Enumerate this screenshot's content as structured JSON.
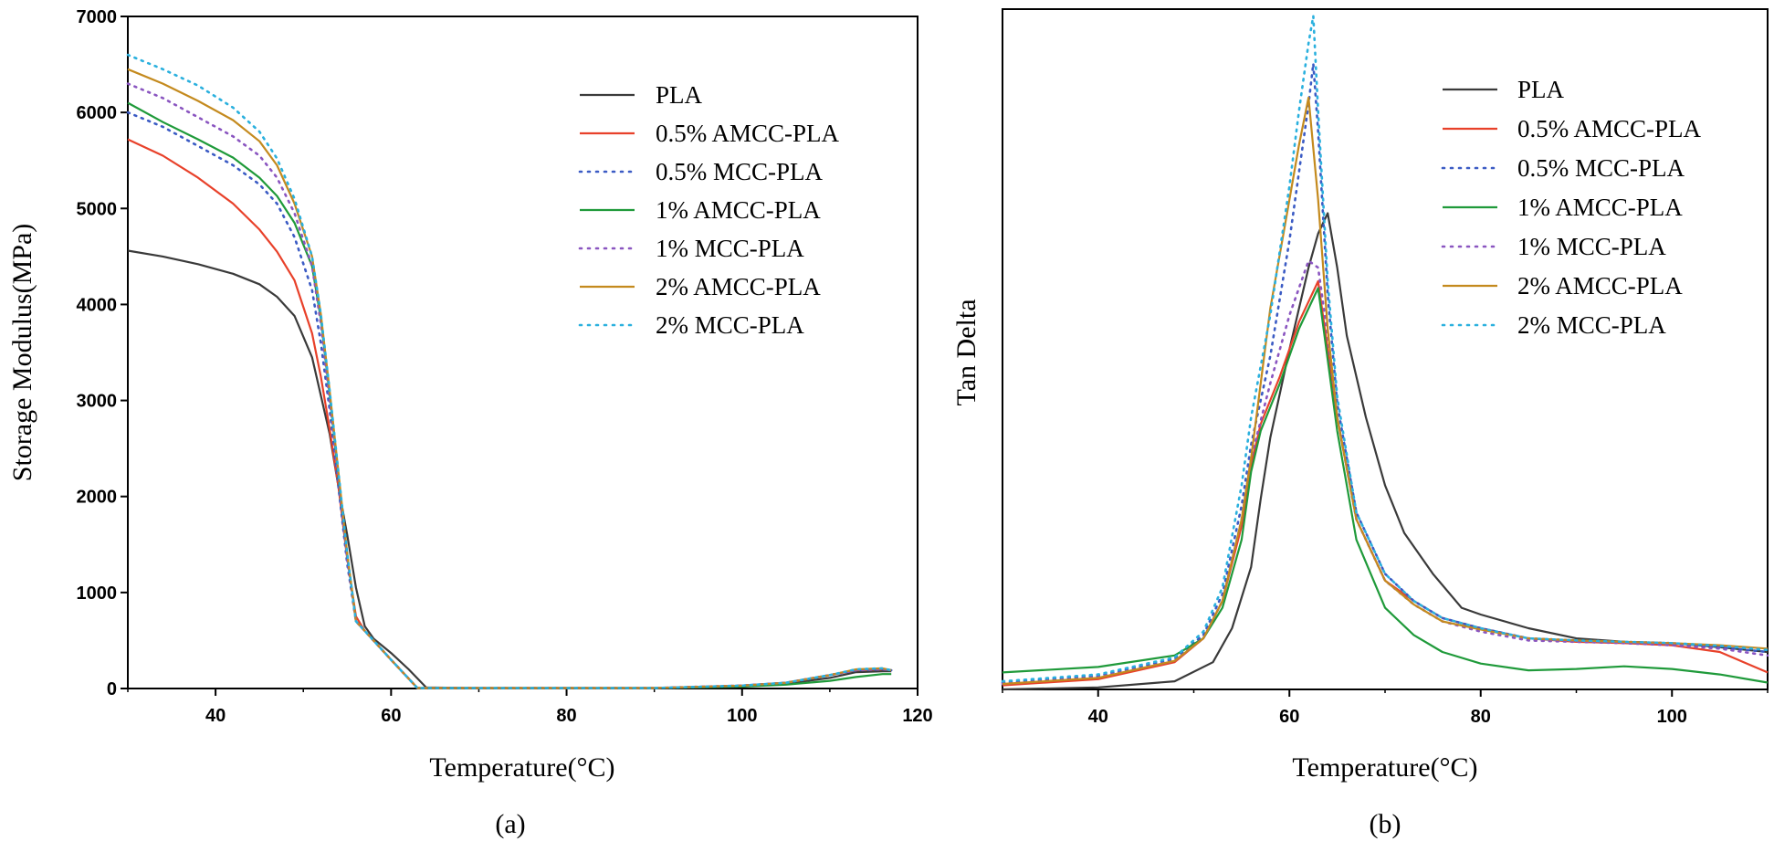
{
  "chart_data": [
    {
      "panel": "a",
      "caption": "(a)",
      "type": "line",
      "xlabel": "Temperature(°C)",
      "ylabel": "Storage Modulus(MPa)",
      "xlim": [
        30,
        120
      ],
      "ylim": [
        0,
        7000
      ],
      "xticks": [
        40,
        60,
        80,
        100,
        120
      ],
      "yticks": [
        0,
        1000,
        2000,
        3000,
        4000,
        5000,
        6000,
        7000
      ],
      "legend": "top-right",
      "series": [
        {
          "name": "PLA",
          "color": "#3a3a3a",
          "dash": "solid",
          "x": [
            30,
            34,
            38,
            42,
            45,
            47,
            49,
            51,
            53,
            54,
            55,
            56,
            57,
            58,
            60,
            62,
            64,
            70,
            80,
            90,
            100,
            105,
            110,
            113,
            116,
            117
          ],
          "y": [
            4560,
            4500,
            4420,
            4320,
            4210,
            4080,
            3880,
            3450,
            2650,
            2100,
            1600,
            1050,
            650,
            520,
            370,
            200,
            10,
            5,
            5,
            5,
            20,
            50,
            110,
            170,
            180,
            180
          ]
        },
        {
          "name": "0.5% AMCC-PLA",
          "color": "#e8412a",
          "dash": "solid",
          "x": [
            30,
            34,
            38,
            42,
            45,
            47,
            49,
            51,
            52,
            53,
            54,
            55,
            56,
            57,
            58,
            60,
            63,
            70,
            80,
            90,
            100,
            105,
            110,
            113,
            116,
            117
          ],
          "y": [
            5720,
            5550,
            5320,
            5050,
            4780,
            4550,
            4250,
            3700,
            3250,
            2700,
            2100,
            1350,
            750,
            600,
            500,
            300,
            5,
            5,
            5,
            5,
            30,
            60,
            140,
            190,
            200,
            190
          ]
        },
        {
          "name": "0.5% MCC-PLA",
          "color": "#3b5bc4",
          "dash": "dot",
          "x": [
            30,
            34,
            38,
            42,
            45,
            47,
            49,
            51,
            52,
            53,
            54,
            55,
            56,
            58,
            60,
            63,
            70,
            80,
            90,
            100,
            105,
            110,
            113,
            116,
            117
          ],
          "y": [
            6000,
            5850,
            5650,
            5450,
            5250,
            5050,
            4700,
            4150,
            3600,
            2900,
            2100,
            1300,
            700,
            500,
            300,
            5,
            5,
            5,
            5,
            30,
            60,
            140,
            190,
            200,
            190
          ]
        },
        {
          "name": "1% AMCC-PLA",
          "color": "#1f9a3a",
          "dash": "solid",
          "x": [
            30,
            34,
            38,
            42,
            45,
            47,
            49,
            51,
            52,
            53,
            54,
            55,
            56,
            58,
            60,
            63,
            70,
            80,
            90,
            100,
            105,
            110,
            113,
            116,
            117
          ],
          "y": [
            6100,
            5900,
            5720,
            5530,
            5320,
            5130,
            4850,
            4400,
            3850,
            3050,
            2200,
            1400,
            700,
            500,
            300,
            5,
            5,
            5,
            5,
            20,
            40,
            80,
            120,
            150,
            150
          ]
        },
        {
          "name": "1% MCC-PLA",
          "color": "#8a55c0",
          "dash": "dot",
          "x": [
            30,
            34,
            38,
            42,
            45,
            47,
            49,
            51,
            52,
            53,
            54,
            55,
            56,
            58,
            60,
            63,
            70,
            80,
            90,
            100,
            105,
            110,
            113,
            116,
            117
          ],
          "y": [
            6300,
            6150,
            5950,
            5750,
            5550,
            5320,
            4950,
            4400,
            3800,
            3000,
            2200,
            1350,
            700,
            500,
            300,
            5,
            5,
            5,
            5,
            30,
            60,
            140,
            190,
            200,
            190
          ]
        },
        {
          "name": "2% AMCC-PLA",
          "color": "#c48a1e",
          "dash": "solid",
          "x": [
            30,
            34,
            38,
            42,
            45,
            47,
            49,
            51,
            52,
            53,
            54,
            55,
            56,
            58,
            60,
            63,
            70,
            80,
            90,
            100,
            105,
            110,
            113,
            116,
            117
          ],
          "y": [
            6450,
            6300,
            6120,
            5920,
            5700,
            5450,
            5050,
            4500,
            3900,
            3100,
            2250,
            1400,
            700,
            500,
            300,
            5,
            5,
            5,
            5,
            30,
            60,
            140,
            200,
            210,
            190
          ]
        },
        {
          "name": "2% MCC-PLA",
          "color": "#2ab0de",
          "dash": "dot",
          "x": [
            30,
            34,
            38,
            42,
            45,
            47,
            49,
            51,
            52,
            53,
            54,
            55,
            56,
            58,
            60,
            63,
            70,
            80,
            90,
            100,
            105,
            110,
            113,
            116,
            117
          ],
          "y": [
            6600,
            6450,
            6280,
            6050,
            5800,
            5520,
            5100,
            4500,
            3900,
            3100,
            2250,
            1400,
            700,
            500,
            300,
            5,
            5,
            5,
            5,
            30,
            60,
            140,
            200,
            210,
            190
          ]
        }
      ]
    },
    {
      "panel": "b",
      "caption": "(b)",
      "type": "line",
      "xlabel": "Temperature(°C)",
      "ylabel": "Tan Delta",
      "xlim": [
        30,
        110
      ],
      "ylim": [
        0,
        1
      ],
      "xticks": [
        40,
        60,
        80,
        100
      ],
      "yticks": [],
      "legend": "top-right",
      "series": [
        {
          "name": "PLA",
          "color": "#3a3a3a",
          "dash": "solid",
          "x": [
            30,
            40,
            48,
            52,
            54,
            56,
            57,
            58,
            60,
            62,
            63,
            64,
            65,
            66,
            68,
            70,
            72,
            75,
            78,
            80,
            85,
            90,
            95,
            100,
            105,
            110
          ],
          "y": [
            0,
            0.003,
            0.012,
            0.04,
            0.09,
            0.18,
            0.28,
            0.37,
            0.5,
            0.62,
            0.67,
            0.7,
            0.62,
            0.52,
            0.4,
            0.3,
            0.23,
            0.17,
            0.12,
            0.11,
            0.09,
            0.075,
            0.07,
            0.068,
            0.062,
            0.055
          ]
        },
        {
          "name": "0.5% AMCC-PLA",
          "color": "#e8412a",
          "dash": "solid",
          "x": [
            30,
            40,
            48,
            51,
            53,
            55,
            56,
            57,
            59,
            61,
            63,
            65,
            67,
            70,
            73,
            76,
            80,
            85,
            90,
            95,
            100,
            105,
            110
          ],
          "y": [
            0.006,
            0.015,
            0.04,
            0.075,
            0.13,
            0.24,
            0.33,
            0.39,
            0.46,
            0.54,
            0.6,
            0.4,
            0.25,
            0.16,
            0.13,
            0.105,
            0.09,
            0.075,
            0.07,
            0.068,
            0.065,
            0.055,
            0.025
          ]
        },
        {
          "name": "0.5% MCC-PLA",
          "color": "#3b5bc4",
          "dash": "dot",
          "x": [
            30,
            40,
            48,
            51,
            53,
            55,
            56,
            58,
            60,
            61,
            62,
            62.5,
            63,
            64,
            65,
            67,
            70,
            73,
            76,
            80,
            85,
            90,
            95,
            100,
            105,
            110
          ],
          "y": [
            0.01,
            0.02,
            0.045,
            0.08,
            0.14,
            0.27,
            0.36,
            0.49,
            0.66,
            0.76,
            0.86,
            0.92,
            0.82,
            0.58,
            0.42,
            0.26,
            0.17,
            0.13,
            0.105,
            0.09,
            0.075,
            0.072,
            0.07,
            0.068,
            0.062,
            0.055
          ]
        },
        {
          "name": "1% AMCC-PLA",
          "color": "#1f9a3a",
          "dash": "solid",
          "x": [
            30,
            40,
            48,
            51,
            53,
            55,
            56,
            57,
            59,
            61,
            63,
            65,
            67,
            70,
            73,
            76,
            80,
            85,
            90,
            95,
            100,
            105,
            110
          ],
          "y": [
            0.025,
            0.033,
            0.05,
            0.075,
            0.12,
            0.22,
            0.32,
            0.38,
            0.45,
            0.53,
            0.59,
            0.38,
            0.22,
            0.12,
            0.08,
            0.055,
            0.038,
            0.028,
            0.03,
            0.034,
            0.03,
            0.022,
            0.01
          ]
        },
        {
          "name": "1% MCC-PLA",
          "color": "#8a55c0",
          "dash": "dot",
          "x": [
            30,
            40,
            48,
            51,
            53,
            55,
            56,
            58,
            60,
            62,
            63,
            64,
            65,
            67,
            70,
            73,
            76,
            80,
            85,
            90,
            95,
            100,
            105,
            110
          ],
          "y": [
            0.008,
            0.018,
            0.042,
            0.075,
            0.13,
            0.25,
            0.34,
            0.45,
            0.55,
            0.63,
            0.62,
            0.52,
            0.4,
            0.25,
            0.16,
            0.125,
            0.1,
            0.085,
            0.072,
            0.07,
            0.068,
            0.065,
            0.06,
            0.05
          ]
        },
        {
          "name": "2% AMCC-PLA",
          "color": "#c48a1e",
          "dash": "solid",
          "x": [
            30,
            40,
            48,
            51,
            53,
            55,
            56,
            57,
            58,
            60,
            61,
            62,
            63,
            64,
            65,
            67,
            70,
            73,
            76,
            80,
            85,
            90,
            95,
            100,
            105,
            110
          ],
          "y": [
            0.008,
            0.017,
            0.042,
            0.075,
            0.13,
            0.25,
            0.34,
            0.45,
            0.56,
            0.72,
            0.8,
            0.87,
            0.72,
            0.53,
            0.4,
            0.25,
            0.16,
            0.125,
            0.1,
            0.088,
            0.075,
            0.072,
            0.07,
            0.068,
            0.065,
            0.06
          ]
        },
        {
          "name": "2% MCC-PLA",
          "color": "#2ab0de",
          "dash": "dot",
          "x": [
            30,
            40,
            48,
            51,
            53,
            55,
            56,
            58,
            60,
            61,
            62,
            62.5,
            63,
            64,
            65,
            67,
            70,
            73,
            76,
            80,
            85,
            90,
            95,
            100,
            105,
            110
          ],
          "y": [
            0.012,
            0.022,
            0.047,
            0.085,
            0.15,
            0.3,
            0.4,
            0.55,
            0.74,
            0.85,
            0.95,
            0.99,
            0.85,
            0.6,
            0.43,
            0.26,
            0.17,
            0.13,
            0.105,
            0.09,
            0.075,
            0.072,
            0.07,
            0.068,
            0.064,
            0.058
          ]
        }
      ]
    }
  ]
}
